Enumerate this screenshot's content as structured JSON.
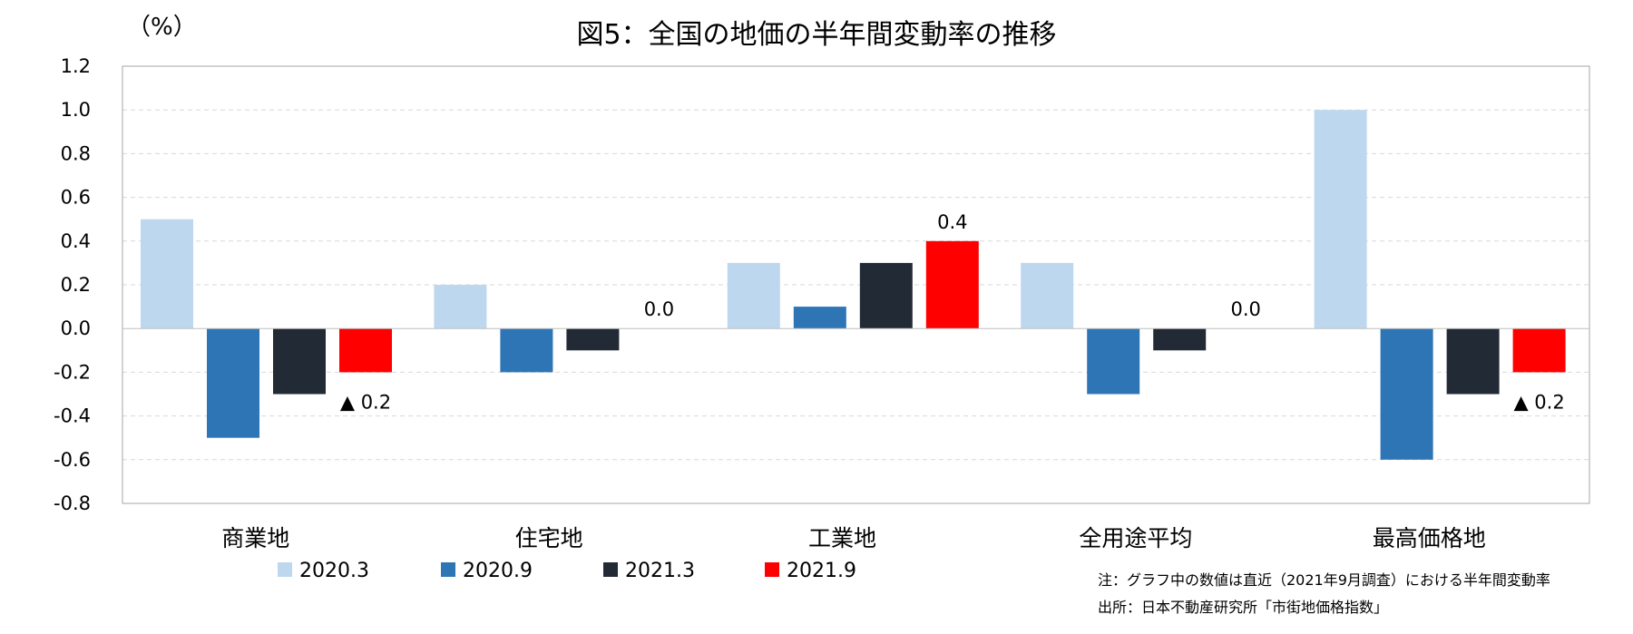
{
  "chart_data": {
    "type": "bar",
    "title": "図5：全国の地価の半年間変動率の推移",
    "ylabel": "（%）",
    "xlabel": "",
    "ylim": [
      -0.8,
      1.2
    ],
    "yticks": [
      1.2,
      1.0,
      0.8,
      0.6,
      0.4,
      0.2,
      0.0,
      -0.2,
      -0.4,
      -0.6,
      -0.8
    ],
    "ytick_labels": [
      "1.2",
      "1.0",
      "0.8",
      "0.6",
      "0.4",
      "0.2",
      "0.0",
      "-0.2",
      "-0.4",
      "-0.6",
      "-0.8"
    ],
    "grid": true,
    "legend_position": "bottom-left",
    "categories": [
      "商業地",
      "住宅地",
      "工業地",
      "全用途平均",
      "最高価格地"
    ],
    "series": [
      {
        "name": "2020.3",
        "color": "#bdd7ee",
        "values": [
          0.5,
          0.2,
          0.3,
          0.3,
          1.0
        ]
      },
      {
        "name": "2020.9",
        "color": "#2e75b6",
        "values": [
          -0.5,
          -0.2,
          0.1,
          -0.3,
          -0.6
        ]
      },
      {
        "name": "2021.3",
        "color": "#222a35",
        "values": [
          -0.3,
          -0.1,
          0.3,
          -0.1,
          -0.3
        ]
      },
      {
        "name": "2021.9",
        "color": "#ff0000",
        "values": [
          -0.2,
          0.0,
          0.4,
          0.0,
          -0.2
        ]
      }
    ],
    "data_labels": [
      "▲ 0.2",
      "0.0",
      "0.4",
      "0.0",
      "▲ 0.2"
    ],
    "notes": [
      "注：グラフ中の数値は直近（2021年9月調査）における半年間変動率",
      "出所：日本不動産研究所「市街地価格指数」"
    ]
  }
}
